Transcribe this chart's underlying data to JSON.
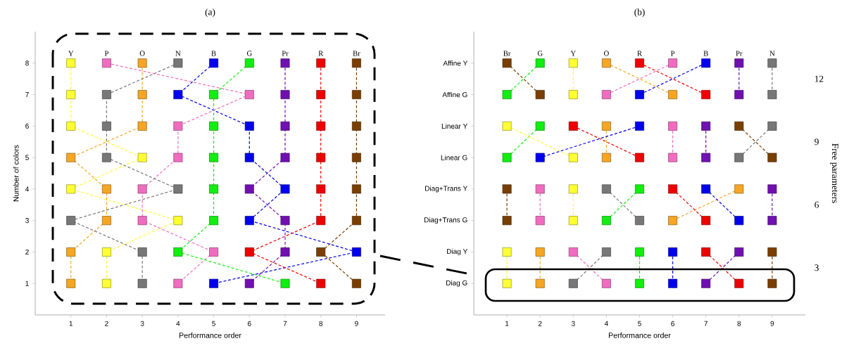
{
  "chart_data": [
    {
      "type": "line",
      "orientation": "horizontal",
      "title": "(a)",
      "xlabel": "Performance order",
      "ylabel": "Number of colors",
      "xlim": [
        0,
        9.8
      ],
      "xticks": [
        1,
        2,
        3,
        4,
        5,
        6,
        7,
        8,
        9
      ],
      "categories": [
        "8",
        "7",
        "6",
        "5",
        "4",
        "3",
        "2",
        "1"
      ],
      "marker": "square",
      "line_style": "dashed",
      "series": [
        {
          "name": "Y",
          "color": "#ffff33",
          "values": [
            1,
            1,
            1,
            3,
            1,
            4,
            2,
            2
          ]
        },
        {
          "name": "P",
          "color": "#f06cc0",
          "values": [
            2,
            6,
            4,
            4,
            3,
            3,
            5,
            4
          ]
        },
        {
          "name": "O",
          "color": "#f5a623",
          "values": [
            3,
            3,
            3,
            1,
            2,
            2,
            1,
            1
          ]
        },
        {
          "name": "N",
          "color": "#777777",
          "values": [
            4,
            2,
            2,
            2,
            4,
            1,
            3,
            3
          ]
        },
        {
          "name": "B",
          "color": "#0000ee",
          "values": [
            5,
            4,
            6,
            6,
            7,
            6,
            9,
            5
          ]
        },
        {
          "name": "G",
          "color": "#11ee11",
          "values": [
            6,
            5,
            5,
            5,
            5,
            5,
            4,
            7
          ]
        },
        {
          "name": "Pr",
          "color": "#7010b0",
          "values": [
            7,
            7,
            7,
            7,
            6,
            7,
            7,
            6
          ]
        },
        {
          "name": "R",
          "color": "#ee0000",
          "values": [
            8,
            8,
            8,
            8,
            8,
            8,
            6,
            8
          ]
        },
        {
          "name": "Br",
          "color": "#7a3f00",
          "values": [
            9,
            9,
            9,
            9,
            9,
            9,
            8,
            9
          ]
        }
      ]
    },
    {
      "type": "line",
      "orientation": "horizontal",
      "title": "(b)",
      "xlabel": "Performance order",
      "y2label": "Free parameters",
      "xlim": [
        0,
        10
      ],
      "xticks": [
        1,
        2,
        3,
        4,
        5,
        6,
        7,
        8,
        9
      ],
      "categories": [
        "Affine Y",
        "Affine G",
        "Linear Y",
        "Linear G",
        "Diag+Trans Y",
        "Diag+Trans G",
        "Diag Y",
        "Diag G"
      ],
      "y2lim": [
        0.75,
        14.25
      ],
      "y2ticks": [
        12,
        9,
        6,
        3
      ],
      "marker": "square",
      "line_style": "dashed",
      "series": [
        {
          "name": "Br",
          "color": "#7a3f00",
          "values": [
            1,
            2,
            null,
            null,
            null,
            null,
            null,
            null
          ]
        },
        {
          "color": "#7a3f00",
          "values": [
            null,
            null,
            8,
            9,
            null,
            null,
            null,
            null
          ]
        },
        {
          "color": "#7a3f00",
          "values": [
            null,
            null,
            null,
            null,
            1,
            1,
            null,
            null
          ]
        },
        {
          "color": "#7a3f00",
          "values": [
            null,
            null,
            null,
            null,
            null,
            null,
            9,
            9
          ]
        },
        {
          "name": "G",
          "color": "#11ee11",
          "values": [
            2,
            1,
            null,
            null,
            null,
            null,
            null,
            null
          ]
        },
        {
          "color": "#11ee11",
          "values": [
            null,
            null,
            2,
            1,
            null,
            null,
            null,
            null
          ]
        },
        {
          "color": "#11ee11",
          "values": [
            null,
            null,
            null,
            null,
            5,
            4,
            null,
            null
          ]
        },
        {
          "color": "#11ee11",
          "values": [
            null,
            null,
            null,
            null,
            null,
            null,
            5,
            5
          ]
        },
        {
          "name": "Y",
          "color": "#ffff33",
          "values": [
            3,
            3,
            null,
            null,
            null,
            null,
            null,
            null
          ]
        },
        {
          "color": "#ffff33",
          "values": [
            null,
            null,
            1,
            3,
            null,
            null,
            null,
            null
          ]
        },
        {
          "color": "#ffff33",
          "values": [
            null,
            null,
            null,
            null,
            3,
            3,
            null,
            null
          ]
        },
        {
          "color": "#ffff33",
          "values": [
            null,
            null,
            null,
            null,
            null,
            null,
            1,
            1
          ]
        },
        {
          "name": "O",
          "color": "#f5a623",
          "values": [
            4,
            6,
            null,
            null,
            null,
            null,
            null,
            null
          ]
        },
        {
          "color": "#f5a623",
          "values": [
            null,
            null,
            4,
            4,
            null,
            null,
            null,
            null
          ]
        },
        {
          "color": "#f5a623",
          "values": [
            null,
            null,
            null,
            null,
            8,
            6,
            null,
            null
          ]
        },
        {
          "color": "#f5a623",
          "values": [
            null,
            null,
            null,
            null,
            null,
            null,
            2,
            2
          ]
        },
        {
          "name": "R",
          "color": "#ee0000",
          "values": [
            5,
            7,
            null,
            null,
            null,
            null,
            null,
            null
          ]
        },
        {
          "color": "#ee0000",
          "values": [
            null,
            null,
            3,
            5,
            null,
            null,
            null,
            null
          ]
        },
        {
          "color": "#ee0000",
          "values": [
            null,
            null,
            null,
            null,
            6,
            7,
            null,
            null
          ]
        },
        {
          "color": "#ee0000",
          "values": [
            null,
            null,
            null,
            null,
            null,
            null,
            7,
            8
          ]
        },
        {
          "name": "P",
          "color": "#f06cc0",
          "values": [
            6,
            4,
            null,
            null,
            null,
            null,
            null,
            null
          ]
        },
        {
          "color": "#f06cc0",
          "values": [
            null,
            null,
            6,
            6,
            null,
            null,
            null,
            null
          ]
        },
        {
          "color": "#f06cc0",
          "values": [
            null,
            null,
            null,
            null,
            2,
            2,
            null,
            null
          ]
        },
        {
          "color": "#f06cc0",
          "values": [
            null,
            null,
            null,
            null,
            null,
            null,
            3,
            4
          ]
        },
        {
          "name": "B",
          "color": "#0000ee",
          "values": [
            7,
            5,
            null,
            null,
            null,
            null,
            null,
            null
          ]
        },
        {
          "color": "#0000ee",
          "values": [
            null,
            null,
            5,
            2,
            null,
            null,
            null,
            null
          ]
        },
        {
          "color": "#0000ee",
          "values": [
            null,
            null,
            null,
            null,
            7,
            8,
            null,
            null
          ]
        },
        {
          "color": "#0000ee",
          "values": [
            null,
            null,
            null,
            null,
            null,
            null,
            6,
            6
          ]
        },
        {
          "name": "Pr",
          "color": "#7010b0",
          "values": [
            8,
            8,
            null,
            null,
            null,
            null,
            null,
            null
          ]
        },
        {
          "color": "#7010b0",
          "values": [
            null,
            null,
            7,
            7,
            null,
            null,
            null,
            null
          ]
        },
        {
          "color": "#7010b0",
          "values": [
            null,
            null,
            null,
            null,
            9,
            9,
            null,
            null
          ]
        },
        {
          "color": "#7010b0",
          "values": [
            null,
            null,
            null,
            null,
            null,
            null,
            8,
            7
          ]
        },
        {
          "name": "N",
          "color": "#777777",
          "values": [
            9,
            9,
            null,
            null,
            null,
            null,
            null,
            null
          ]
        },
        {
          "color": "#777777",
          "values": [
            null,
            null,
            9,
            8,
            null,
            null,
            null,
            null
          ]
        },
        {
          "color": "#777777",
          "values": [
            null,
            null,
            null,
            null,
            4,
            5,
            null,
            null
          ]
        },
        {
          "color": "#777777",
          "values": [
            null,
            null,
            null,
            null,
            null,
            null,
            4,
            3
          ]
        }
      ]
    }
  ]
}
